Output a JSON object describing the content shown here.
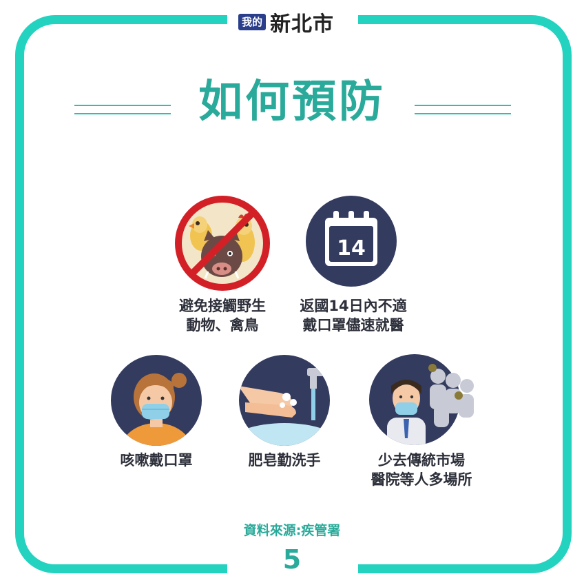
{
  "brand": {
    "badge": "我的",
    "name": "新北市"
  },
  "title": "如何預防",
  "items": [
    {
      "icon": "no-wild-animals-icon",
      "line1": "避免接觸野生",
      "line2": "動物、禽鳥"
    },
    {
      "icon": "calendar-14-icon",
      "line1": "返國14日內不適",
      "line2": "戴口罩儘速就醫"
    },
    {
      "icon": "masked-person-icon",
      "line1": "咳嗽戴口罩",
      "line2": ""
    },
    {
      "icon": "handwashing-icon",
      "line1": "肥皂勤洗手",
      "line2": ""
    },
    {
      "icon": "avoid-crowds-icon",
      "line1": "少去傳統市場",
      "line2": "醫院等人多場所"
    }
  ],
  "calendar_day": "14",
  "source": "資料來源:疾管署",
  "page_number": "5",
  "colors": {
    "teal": "#23d2bf",
    "title_teal": "#2aaa9a",
    "navy": "#333b5e",
    "red": "#d32027"
  }
}
